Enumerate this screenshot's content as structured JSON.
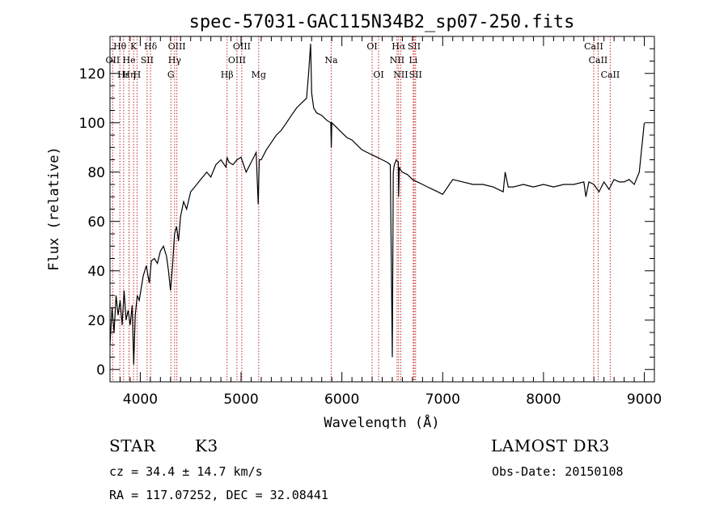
{
  "chart_data": {
    "type": "line",
    "title": "spec-57031-GAC115N34B2_sp07-250.fits",
    "xlabel": "Wavelength (Å)",
    "ylabel": "Flux (relative)",
    "xlim": [
      3700,
      9100
    ],
    "ylim": [
      -5,
      135
    ],
    "x_ticks": [
      4000,
      5000,
      6000,
      7000,
      8000,
      9000
    ],
    "y_ticks": [
      0,
      20,
      40,
      60,
      80,
      100,
      120
    ],
    "series": [
      {
        "name": "spectrum",
        "x": [
          3700,
          3720,
          3740,
          3760,
          3780,
          3800,
          3820,
          3840,
          3860,
          3880,
          3900,
          3920,
          3935,
          3950,
          3970,
          3990,
          4010,
          4030,
          4060,
          4090,
          4110,
          4140,
          4170,
          4200,
          4230,
          4260,
          4280,
          4300,
          4320,
          4340,
          4360,
          4380,
          4400,
          4430,
          4460,
          4500,
          4540,
          4580,
          4620,
          4660,
          4700,
          4750,
          4800,
          4850,
          4860,
          4880,
          4920,
          4960,
          5000,
          5050,
          5100,
          5150,
          5170,
          5180,
          5200,
          5250,
          5300,
          5350,
          5400,
          5450,
          5500,
          5550,
          5600,
          5650,
          5670,
          5690,
          5700,
          5720,
          5750,
          5800,
          5850,
          5890,
          5895,
          5900,
          5950,
          6000,
          6050,
          6100,
          6150,
          6200,
          6250,
          6300,
          6350,
          6400,
          6450,
          6480,
          6500,
          6510,
          6520,
          6540,
          6560,
          6563,
          6570,
          6580,
          6600,
          6650,
          6700,
          6750,
          6800,
          6850,
          6900,
          6950,
          7000,
          7100,
          7200,
          7300,
          7400,
          7500,
          7550,
          7600,
          7620,
          7650,
          7700,
          7800,
          7900,
          8000,
          8100,
          8200,
          8300,
          8400,
          8420,
          8450,
          8500,
          8550,
          8600,
          8650,
          8700,
          8750,
          8800,
          8850,
          8900,
          8950,
          9000
        ],
        "values": [
          10,
          25,
          15,
          30,
          22,
          28,
          18,
          32,
          20,
          24,
          18,
          26,
          2,
          22,
          30,
          28,
          33,
          38,
          42,
          35,
          44,
          45,
          43,
          48,
          50,
          46,
          40,
          32,
          42,
          55,
          58,
          52,
          62,
          68,
          65,
          72,
          74,
          76,
          78,
          80,
          78,
          83,
          85,
          82,
          86,
          84,
          83,
          85,
          86,
          80,
          84,
          88,
          67,
          85,
          85,
          89,
          92,
          95,
          97,
          100,
          103,
          106,
          108,
          110,
          120,
          132,
          112,
          106,
          104,
          103,
          101,
          100,
          90,
          100,
          98,
          96,
          94,
          93,
          91,
          89,
          88,
          87,
          86,
          85,
          84,
          83,
          5,
          80,
          83,
          85,
          84,
          70,
          82,
          81,
          80,
          79,
          77,
          76,
          75,
          74,
          73,
          72,
          71,
          77,
          76,
          75,
          75,
          74,
          73,
          72,
          80,
          74,
          74,
          75,
          74,
          75,
          74,
          75,
          75,
          76,
          70,
          76,
          75,
          72,
          76,
          73,
          77,
          76,
          76,
          77,
          75,
          80,
          100
        ]
      }
    ],
    "line_markers": [
      {
        "label": "Hθ",
        "x": 3798,
        "row": 0
      },
      {
        "label": "OII",
        "x": 3727,
        "row": 1
      },
      {
        "label": "Hε",
        "x": 3835,
        "row": 2
      },
      {
        "label": "Hη",
        "x": 3889,
        "row": 2
      },
      {
        "label": "He",
        "x": 3889,
        "row": 1
      },
      {
        "label": "K",
        "x": 3934,
        "row": 0
      },
      {
        "label": "H",
        "x": 3968,
        "row": 2
      },
      {
        "label": "SII",
        "x": 4068,
        "row": 1
      },
      {
        "label": "Hδ",
        "x": 4102,
        "row": 0
      },
      {
        "label": "OIII",
        "x": 4363,
        "row": 0
      },
      {
        "label": "Hγ",
        "x": 4341,
        "row": 1
      },
      {
        "label": "G",
        "x": 4304,
        "row": 2
      },
      {
        "label": "Hβ",
        "x": 4861,
        "row": 2
      },
      {
        "label": "OIII",
        "x": 5007,
        "row": 0
      },
      {
        "label": "OIII",
        "x": 4959,
        "row": 1
      },
      {
        "label": "Mg",
        "x": 5175,
        "row": 2
      },
      {
        "label": "Na",
        "x": 5894,
        "row": 1
      },
      {
        "label": "OI",
        "x": 6300,
        "row": 0
      },
      {
        "label": "OI",
        "x": 6364,
        "row": 2
      },
      {
        "label": "Hα",
        "x": 6563,
        "row": 0
      },
      {
        "label": "NII",
        "x": 6548,
        "row": 1
      },
      {
        "label": "NII",
        "x": 6584,
        "row": 2
      },
      {
        "label": "SII",
        "x": 6717,
        "row": 0
      },
      {
        "label": "Li",
        "x": 6708,
        "row": 1
      },
      {
        "label": "SII",
        "x": 6731,
        "row": 2
      },
      {
        "label": "CaII",
        "x": 8498,
        "row": 0
      },
      {
        "label": "CaII",
        "x": 8542,
        "row": 1
      },
      {
        "label": "CaII",
        "x": 8662,
        "row": 2
      }
    ]
  },
  "info": {
    "object_class": "STAR",
    "subclass": "K3",
    "survey": "LAMOST DR3",
    "redshift": "cz = 34.4 ± 14.7 km/s",
    "obs_date": "Obs-Date: 20150108",
    "coords": "RA = 117.07252, DEC =  32.08441"
  },
  "colors": {
    "line_marker": "#c62828",
    "spectrum": "#000000",
    "axes": "#000000"
  }
}
